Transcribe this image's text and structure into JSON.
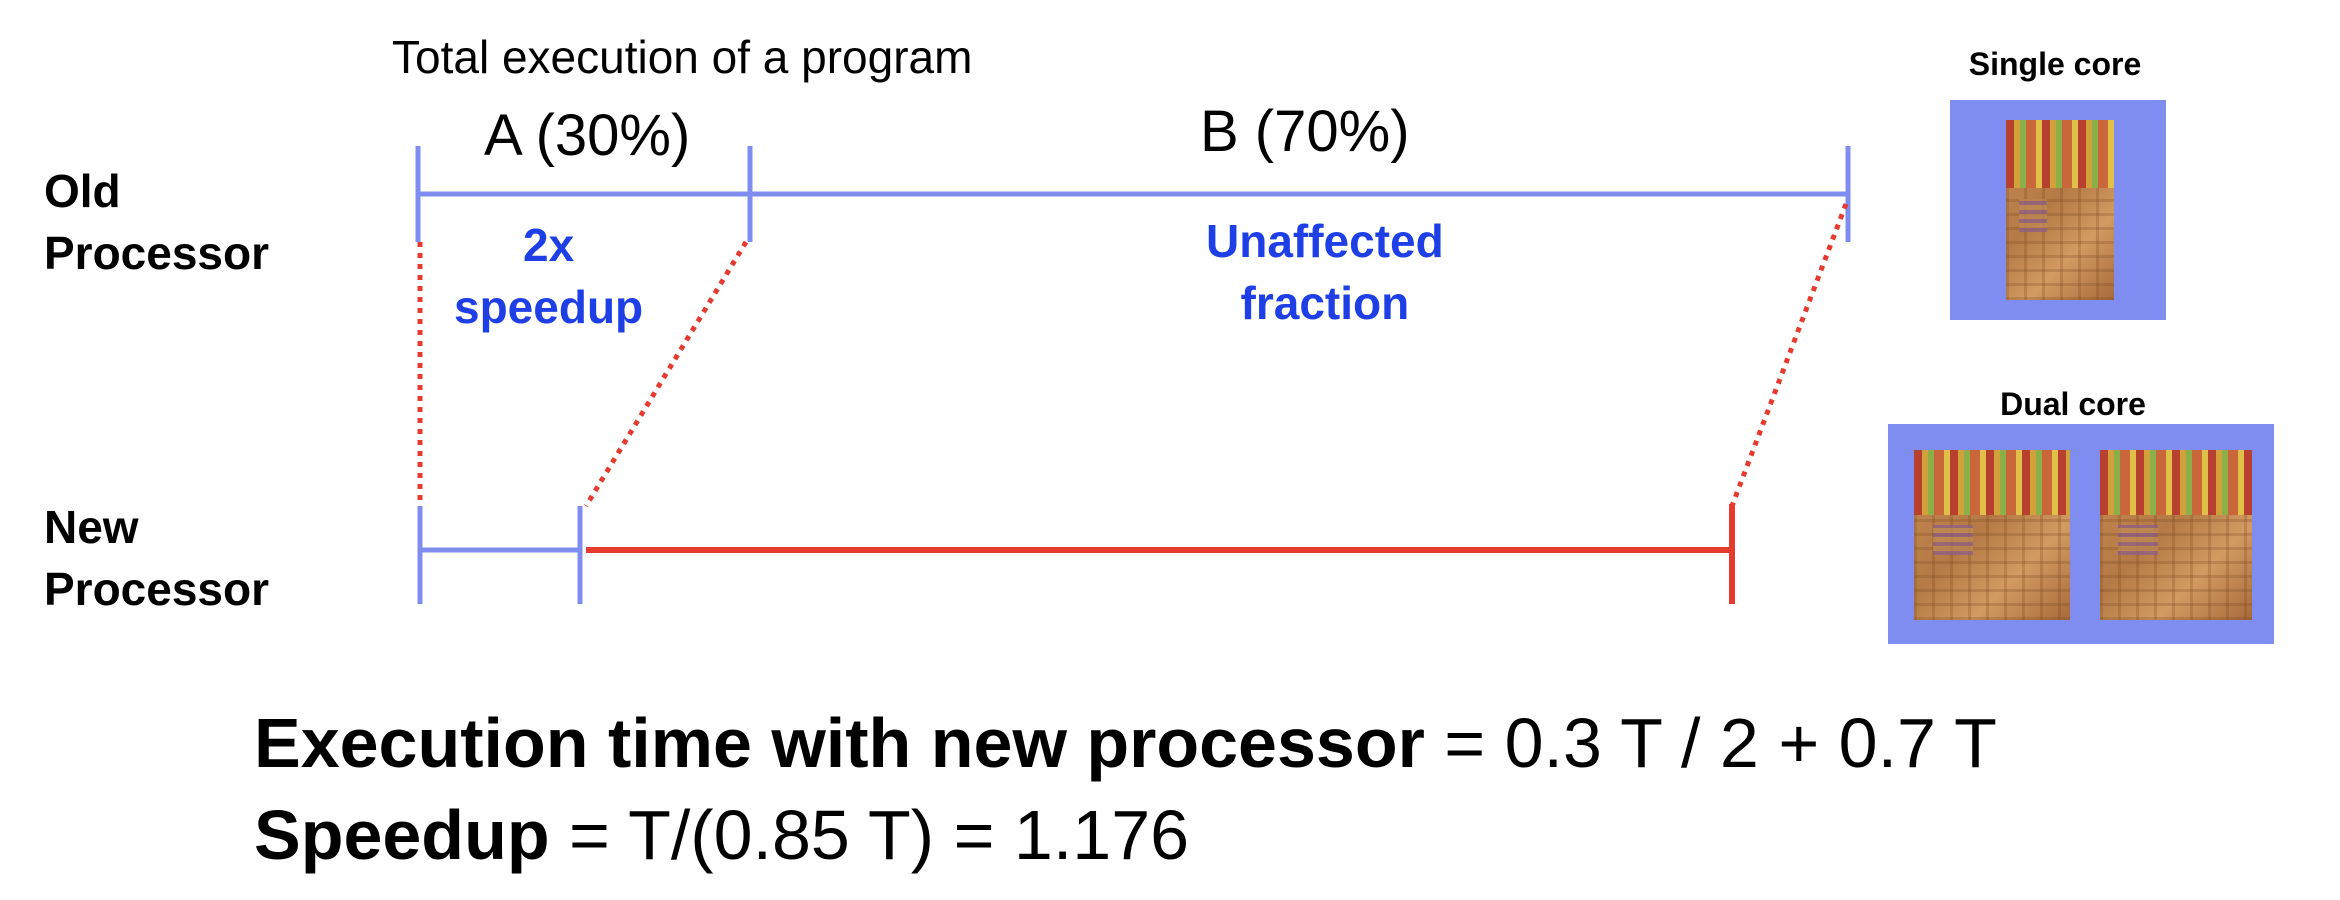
{
  "header": {
    "title": "Total execution of a program"
  },
  "segments": {
    "a_label": "A (30%)",
    "b_label": "B (70%)"
  },
  "rows": {
    "old_label": "Old\nProcessor",
    "new_label": "New\nProcessor"
  },
  "notes": {
    "speedup": "2x\nspeedup",
    "unaffected": "Unaffected\nfraction"
  },
  "chips": {
    "single_label": "Single core",
    "dual_label": "Dual core"
  },
  "formulas": {
    "line1_bold": "Execution time with new processor",
    "line1_rest": " = 0.3 T / 2 + 0.7 T",
    "line2_bold": "Speedup",
    "line2_rest": " = T/(0.85 T) = 1.176"
  },
  "colors": {
    "timeline_blue": "#7f8cf0",
    "note_blue": "#1f3fe6",
    "timeline_red": "#e63a2e",
    "chip_frame": "#7f8cf0"
  },
  "values": {
    "fraction_a": 0.3,
    "fraction_b": 0.7,
    "a_speedup": 2
  }
}
